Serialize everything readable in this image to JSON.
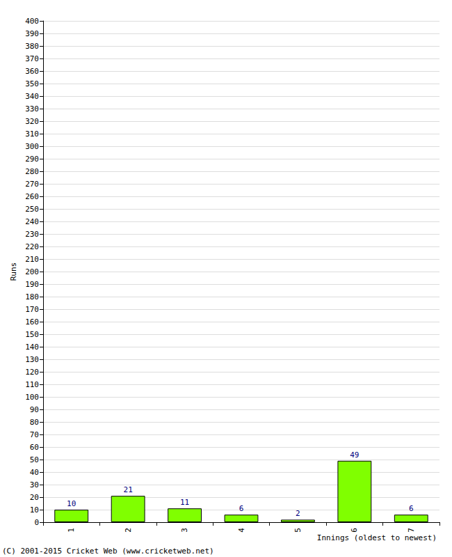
{
  "chart_data": {
    "type": "bar",
    "categories": [
      "1",
      "2",
      "3",
      "4",
      "5",
      "6",
      "7"
    ],
    "values": [
      10,
      21,
      11,
      6,
      2,
      49,
      6
    ],
    "color": "#80ff00",
    "x_label": "Innings (oldest to newest)",
    "y_label": "Runs",
    "annotation": "(C) 2001-2015 Cricket Web (www.cricketweb.net)",
    "ylim": [
      0,
      400
    ],
    "yticks": [
      0,
      10,
      20,
      30,
      40,
      50,
      60,
      70,
      80,
      90,
      100,
      110,
      120,
      130,
      140,
      150,
      160,
      170,
      180,
      190,
      200,
      210,
      220,
      230,
      240,
      250,
      260,
      270,
      280,
      290,
      300,
      310,
      320,
      330,
      340,
      350,
      360,
      370,
      380,
      390,
      400
    ],
    "grid": true,
    "data_labels": true
  }
}
